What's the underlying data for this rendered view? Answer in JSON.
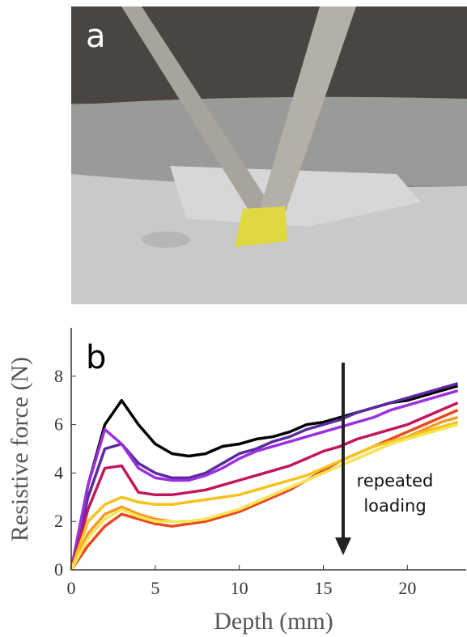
{
  "chart_data": {
    "type": "line",
    "panel_labels": [
      "a",
      "b"
    ],
    "xlabel": "Depth (mm)",
    "ylabel": "Resistive force (N)",
    "annotation_lines": [
      "repeated",
      "loading"
    ],
    "xlim": [
      0,
      23.5
    ],
    "ylim": [
      0,
      10
    ],
    "xticks": [
      0,
      5,
      10,
      15,
      20
    ],
    "yticks": [
      0,
      2,
      4,
      6,
      8
    ],
    "x": [
      0,
      1,
      2,
      3,
      4,
      5,
      6,
      7,
      8,
      9,
      10,
      11,
      12,
      13,
      14,
      15,
      16,
      17,
      18,
      19,
      20,
      21,
      22,
      23
    ],
    "series": [
      {
        "color": "#000000",
        "values": [
          0,
          3.5,
          6,
          7,
          6,
          5.2,
          4.8,
          4.7,
          4.8,
          5.1,
          5.2,
          5.4,
          5.5,
          5.7,
          6,
          6.1,
          6.3,
          6.5,
          6.7,
          6.9,
          7.0,
          7.2,
          7.4,
          7.6
        ]
      },
      {
        "color": "#5b2a9e",
        "values": [
          0,
          3,
          5,
          5.2,
          4.4,
          4,
          3.8,
          3.8,
          4,
          4.4,
          4.8,
          5,
          5.3,
          5.5,
          5.8,
          6.0,
          6.2,
          6.5,
          6.7,
          6.9,
          7.1,
          7.3,
          7.5,
          7.7
        ]
      },
      {
        "color": "#9b30e0",
        "values": [
          0,
          3.5,
          5.8,
          5.2,
          4.2,
          3.8,
          3.7,
          3.7,
          3.9,
          4.2,
          4.6,
          4.9,
          5.1,
          5.3,
          5.5,
          5.7,
          5.9,
          6.1,
          6.3,
          6.6,
          6.8,
          7.0,
          7.2,
          7.4
        ]
      },
      {
        "color": "#c2185b",
        "values": [
          0,
          2.5,
          4.2,
          4.3,
          3.2,
          3.1,
          3.1,
          3.2,
          3.3,
          3.5,
          3.7,
          3.9,
          4.1,
          4.3,
          4.6,
          4.9,
          5.1,
          5.4,
          5.6,
          5.8,
          6.0,
          6.3,
          6.6,
          6.9
        ]
      },
      {
        "color": "#e84a1e",
        "values": [
          0,
          1,
          1.8,
          2.3,
          2.1,
          1.9,
          1.8,
          1.9,
          2,
          2.2,
          2.4,
          2.7,
          3,
          3.3,
          3.7,
          4.1,
          4.5,
          4.8,
          5.1,
          5.4,
          5.7,
          6,
          6.3,
          6.6
        ]
      },
      {
        "color": "#f59a23",
        "values": [
          0,
          1.5,
          2.3,
          2.6,
          2.3,
          2.1,
          2.0,
          2.0,
          2.1,
          2.3,
          2.5,
          2.8,
          3.1,
          3.4,
          3.7,
          4.0,
          4.3,
          4.6,
          4.9,
          5.2,
          5.5,
          5.8,
          6.1,
          6.3
        ]
      },
      {
        "color": "#f7c21a",
        "values": [
          0,
          2,
          2.7,
          3.0,
          2.8,
          2.7,
          2.7,
          2.8,
          2.9,
          3.0,
          3.1,
          3.3,
          3.5,
          3.7,
          3.9,
          4.2,
          4.5,
          4.8,
          5.1,
          5.3,
          5.5,
          5.7,
          5.9,
          6.1
        ]
      },
      {
        "color": "#f5e65a",
        "values": [
          0,
          1.3,
          2.1,
          2.5,
          2.2,
          2.0,
          2.0,
          2.0,
          2.1,
          2.3,
          2.5,
          2.8,
          3.1,
          3.4,
          3.7,
          4.0,
          4.3,
          4.6,
          4.9,
          5.2,
          5.4,
          5.6,
          5.8,
          6.0
        ]
      }
    ]
  }
}
